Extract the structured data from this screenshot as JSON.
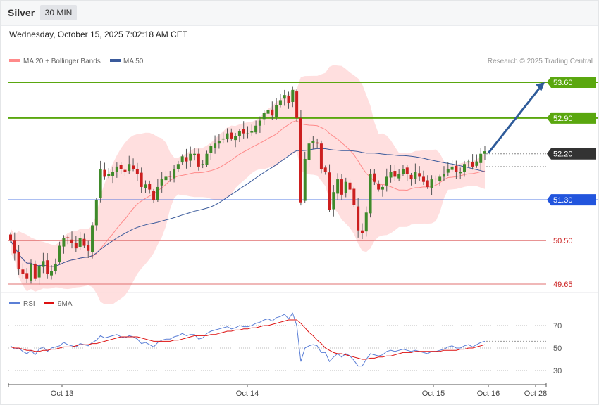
{
  "header": {
    "instrument": "Silver",
    "timeframe": "30 MIN",
    "datetime": "Wednesday, October 15, 2025 7:02:18 AM CET"
  },
  "colors": {
    "bull": "#3f8a2a",
    "bear": "#cc1f1f",
    "band_fill": "#ffd9d9",
    "ma20": "#ff8a8a",
    "ma50": "#3a5a9b",
    "resistance": "#5aa70f",
    "support": "#2255dd",
    "weak_level": "#e07070",
    "price_tag": "#333333",
    "arrow": "#2e5b9a",
    "rsi": "#5b7fd6",
    "rsi_ma": "#dd1111"
  },
  "chart_data": [
    {
      "type": "candlestick",
      "title": "",
      "legend": [
        {
          "label": "MA 20 + Bollinger Bands",
          "color": "#ff8a8a"
        },
        {
          "label": "MA 50",
          "color": "#3a5a9b"
        }
      ],
      "legend_position": "top-left",
      "credit": "Research © 2025 Trading Central",
      "ylim": [
        49.4,
        54.0
      ],
      "x_ticks": [
        "Oct 13",
        "Oct 14",
        "Oct 15",
        "Oct 16",
        "Oct 28"
      ],
      "levels": [
        {
          "label": "53.60",
          "value": 53.6,
          "kind": "resistance"
        },
        {
          "label": "52.90",
          "value": 52.9,
          "kind": "resistance"
        },
        {
          "label": "52.20",
          "value": 52.2,
          "kind": "current"
        },
        {
          "label": "51.30",
          "value": 51.3,
          "kind": "support"
        },
        {
          "label": "50.50",
          "value": 50.5,
          "kind": "weak"
        },
        {
          "label": "49.65",
          "value": 49.65,
          "kind": "weak"
        }
      ],
      "close": [
        50.5,
        50.25,
        49.95,
        49.85,
        49.75,
        50.05,
        49.75,
        50.0,
        50.1,
        49.85,
        49.9,
        50.05,
        50.4,
        50.55,
        50.55,
        50.45,
        50.35,
        50.55,
        50.4,
        50.3,
        50.8,
        51.3,
        51.9,
        51.75,
        51.8,
        51.85,
        51.95,
        51.9,
        51.85,
        52.0,
        51.9,
        51.8,
        51.55,
        51.6,
        51.5,
        51.3,
        51.55,
        51.7,
        51.75,
        51.75,
        51.9,
        52.0,
        52.15,
        52.05,
        52.2,
        52.2,
        51.95,
        52.0,
        52.2,
        52.35,
        52.4,
        52.45,
        52.5,
        52.6,
        52.5,
        52.55,
        52.65,
        52.6,
        52.6,
        52.65,
        52.75,
        52.85,
        53.0,
        53.05,
        52.95,
        53.15,
        53.25,
        53.35,
        53.2,
        53.45,
        52.9,
        51.25,
        52.1,
        52.4,
        52.45,
        52.4,
        51.9,
        51.85,
        51.1,
        51.45,
        51.7,
        51.4,
        51.65,
        51.5,
        51.2,
        50.7,
        50.65,
        51.05,
        51.8,
        51.65,
        51.5,
        51.55,
        51.75,
        51.85,
        51.75,
        51.8,
        51.9,
        51.8,
        51.7,
        51.85,
        51.75,
        51.65,
        51.55,
        51.7,
        51.7,
        51.75,
        51.8,
        51.9,
        51.95,
        51.85,
        51.85,
        52.0,
        52.05,
        51.95,
        52.05,
        52.2,
        52.25
      ]
    },
    {
      "type": "line",
      "title": "RSI",
      "legend": [
        {
          "label": "RSI",
          "color": "#5b7fd6"
        },
        {
          "label": "9MA",
          "color": "#dd1111"
        }
      ],
      "ylim": [
        20,
        85
      ],
      "y_ticks": [
        "70",
        "50",
        "30"
      ],
      "series": [
        {
          "name": "RSI",
          "values": [
            52,
            49,
            50,
            47,
            45,
            48,
            44,
            49,
            51,
            47,
            50,
            51,
            52,
            55,
            53,
            52,
            51,
            54,
            53,
            52,
            55,
            57,
            61,
            59,
            60,
            61,
            62,
            60,
            59,
            61,
            60,
            58,
            54,
            55,
            53,
            51,
            55,
            57,
            58,
            58,
            60,
            61,
            63,
            61,
            62,
            62,
            58,
            59,
            63,
            65,
            66,
            67,
            68,
            69,
            67,
            68,
            70,
            69,
            69,
            70,
            72,
            73,
            75,
            76,
            74,
            77,
            78,
            80,
            76,
            81,
            70,
            38,
            50,
            52,
            53,
            52,
            46,
            46,
            38,
            42,
            45,
            42,
            45,
            43,
            39,
            34,
            34,
            40,
            45,
            44,
            43,
            44,
            47,
            48,
            47,
            48,
            49,
            48,
            47,
            48,
            47,
            46,
            45,
            47,
            47,
            48,
            49,
            51,
            52,
            50,
            50,
            52,
            53,
            51,
            53,
            55,
            56
          ]
        },
        {
          "name": "9MA",
          "values": [
            51,
            50,
            50,
            49,
            48,
            48,
            47,
            47,
            48,
            48,
            49,
            49,
            50,
            51,
            51,
            51,
            52,
            53,
            53,
            53,
            54,
            54,
            55,
            56,
            57,
            58,
            59,
            60,
            60,
            60,
            60,
            60,
            59,
            58,
            57,
            56,
            56,
            56,
            56,
            56,
            57,
            57,
            58,
            59,
            60,
            61,
            61,
            61,
            61,
            62,
            62,
            63,
            64,
            65,
            65,
            66,
            66,
            67,
            67,
            68,
            68,
            69,
            70,
            70,
            71,
            72,
            73,
            74,
            75,
            75,
            75,
            72,
            68,
            64,
            61,
            57,
            54,
            50,
            48,
            46,
            45,
            45,
            44,
            43,
            42,
            41,
            40,
            40,
            41,
            41,
            42,
            42,
            43,
            43,
            44,
            45,
            46,
            46,
            46,
            47,
            47,
            47,
            47,
            47,
            47,
            47,
            48,
            48,
            48,
            48,
            49,
            49,
            50,
            50,
            51,
            52,
            53
          ]
        }
      ]
    }
  ]
}
